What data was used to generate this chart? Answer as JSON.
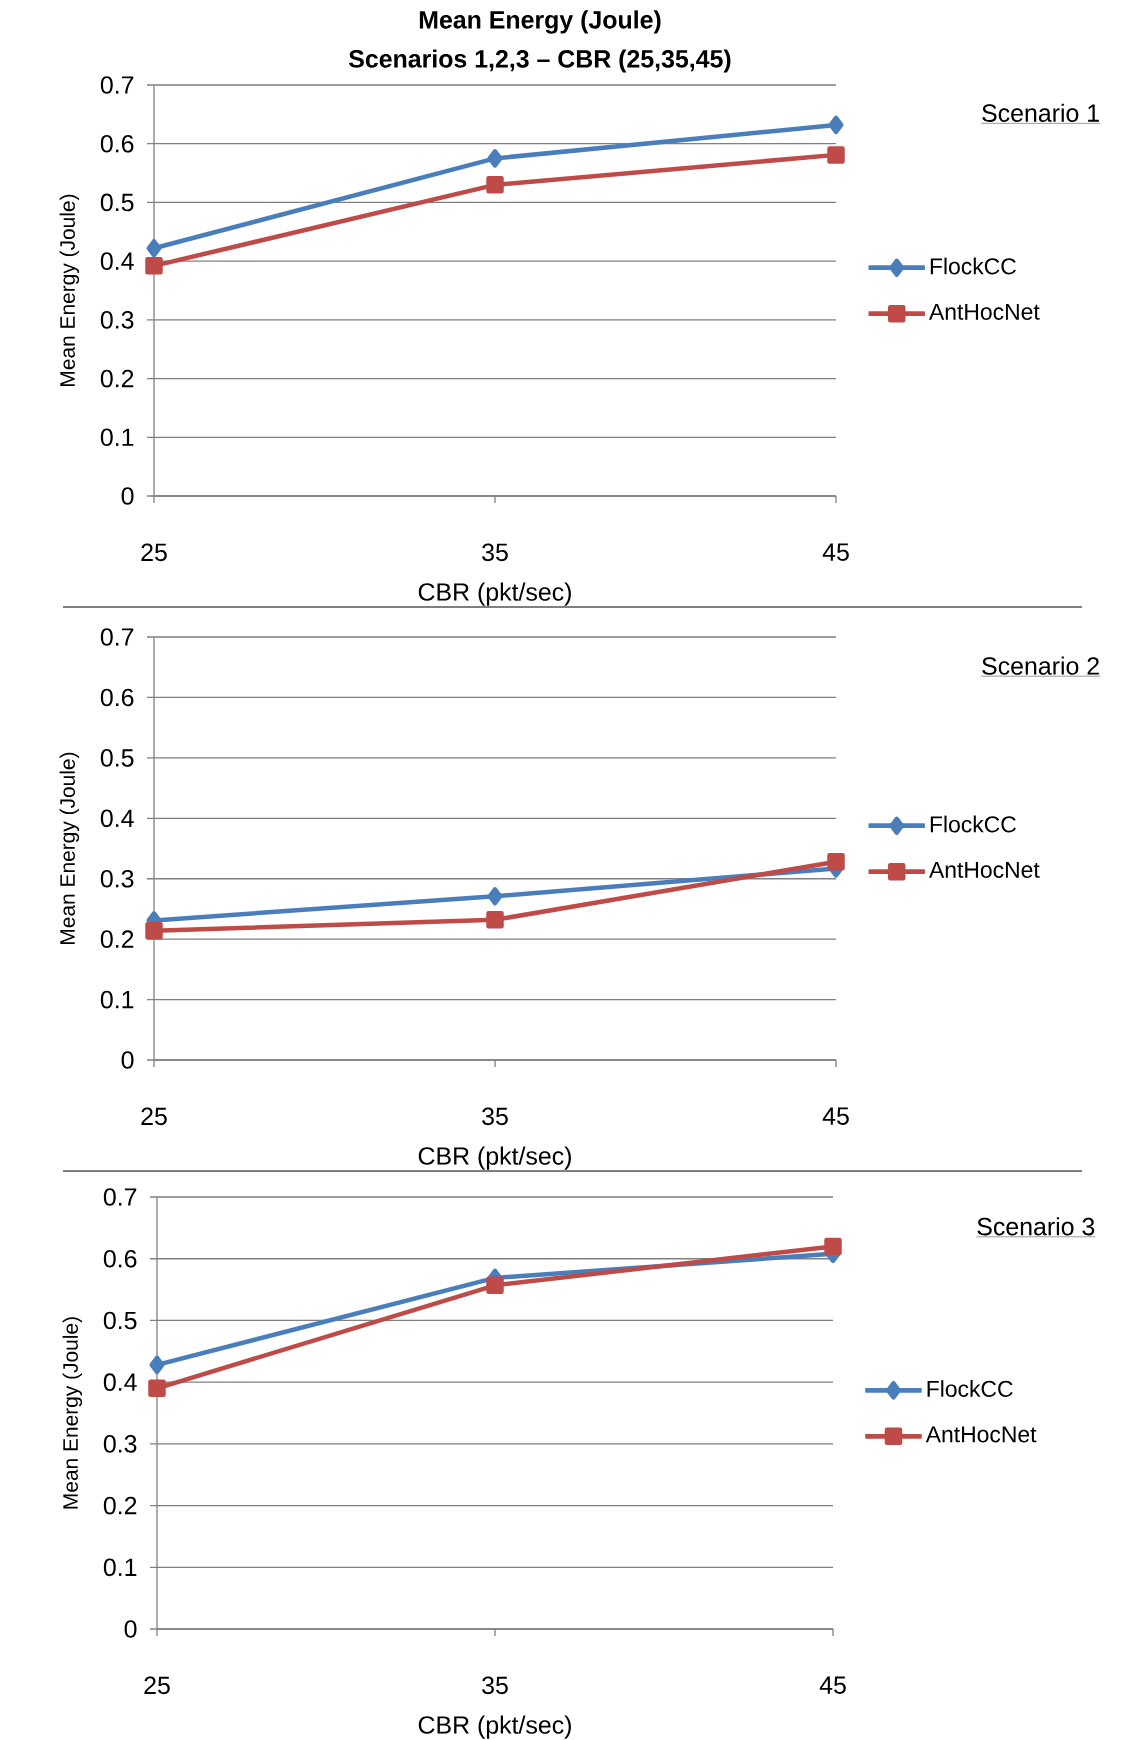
{
  "chart_data": [
    {
      "type": "line",
      "title": "Mean Energy (Joule)",
      "subtitle": "Scenarios 1,2,3 – CBR (25,35,45)",
      "xlabel": "CBR (pkt/sec)",
      "ylabel": "Mean Energy (Joule)",
      "annotations": [
        "Scenario 1"
      ],
      "categories": [
        "25",
        "35",
        "45"
      ],
      "ylim": [
        0,
        0.7
      ],
      "yticks": [
        0,
        0.1,
        0.2,
        0.3,
        0.4,
        0.5,
        0.6,
        0.7
      ],
      "grid": "y",
      "legend": "right",
      "series": [
        {
          "name": "FlockCC",
          "color": "#4a7ebb",
          "marker": "diamond",
          "values": [
            0.422,
            0.575,
            0.632
          ]
        },
        {
          "name": "AntHocNet",
          "color": "#be4b48",
          "marker": "square",
          "values": [
            0.392,
            0.53,
            0.581
          ]
        }
      ]
    },
    {
      "type": "line",
      "xlabel": "CBR (pkt/sec)",
      "ylabel": "Mean Energy (Joule)",
      "annotations": [
        "Scenario 2"
      ],
      "categories": [
        "25",
        "35",
        "45"
      ],
      "ylim": [
        0,
        0.7
      ],
      "yticks": [
        0,
        0.1,
        0.2,
        0.3,
        0.4,
        0.5,
        0.6,
        0.7
      ],
      "grid": "y",
      "legend": "right",
      "series": [
        {
          "name": "FlockCC",
          "color": "#4a7ebb",
          "marker": "diamond",
          "values": [
            0.231,
            0.271,
            0.317
          ]
        },
        {
          "name": "AntHocNet",
          "color": "#be4b48",
          "marker": "square",
          "values": [
            0.214,
            0.232,
            0.328
          ]
        }
      ]
    },
    {
      "type": "line",
      "xlabel": "CBR (pkt/sec)",
      "ylabel": "Mean Energy (Joule)",
      "annotations": [
        "Scenario 3"
      ],
      "categories": [
        "25",
        "35",
        "45"
      ],
      "ylim": [
        0,
        0.7
      ],
      "yticks": [
        0,
        0.1,
        0.2,
        0.3,
        0.4,
        0.5,
        0.6,
        0.7
      ],
      "grid": "y",
      "legend": "right",
      "series": [
        {
          "name": "FlockCC",
          "color": "#4a7ebb",
          "marker": "diamond",
          "values": [
            0.428,
            0.569,
            0.608
          ]
        },
        {
          "name": "AntHocNet",
          "color": "#be4b48",
          "marker": "square",
          "values": [
            0.39,
            0.557,
            0.62
          ]
        }
      ]
    }
  ]
}
